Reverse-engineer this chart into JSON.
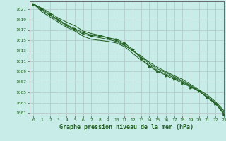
{
  "title": "",
  "xlabel": "Graphe pression niveau de la mer (hPa)",
  "ylabel": "",
  "bg_color": "#c8ece8",
  "grid_color": "#b0c8c4",
  "line_color": "#1e5e1e",
  "xlim": [
    -0.5,
    23
  ],
  "ylim": [
    1000.5,
    1022.5
  ],
  "yticks": [
    1001,
    1003,
    1005,
    1007,
    1009,
    1011,
    1013,
    1015,
    1017,
    1019,
    1021
  ],
  "xticks": [
    0,
    1,
    2,
    3,
    4,
    5,
    6,
    7,
    8,
    9,
    10,
    11,
    12,
    13,
    14,
    15,
    16,
    17,
    18,
    19,
    20,
    21,
    22,
    23
  ],
  "line1": [
    1022.0,
    1021.2,
    1020.3,
    1019.3,
    1018.5,
    1017.8,
    1016.8,
    1016.3,
    1016.0,
    1015.5,
    1015.0,
    1014.2,
    1013.0,
    1012.0,
    1010.8,
    1009.8,
    1009.0,
    1008.2,
    1007.5,
    1006.5,
    1005.5,
    1004.5,
    1003.2,
    1001.5
  ],
  "line2": [
    1022.0,
    1020.8,
    1019.8,
    1018.8,
    1017.8,
    1017.0,
    1016.2,
    1015.8,
    1015.5,
    1015.2,
    1014.8,
    1014.0,
    1013.0,
    1011.8,
    1010.5,
    1009.5,
    1008.8,
    1008.0,
    1007.2,
    1006.3,
    1005.3,
    1004.2,
    1003.0,
    1001.2
  ],
  "line3": [
    1022.0,
    1020.5,
    1019.5,
    1018.5,
    1017.5,
    1016.8,
    1015.8,
    1015.2,
    1015.0,
    1014.8,
    1014.5,
    1013.8,
    1012.5,
    1011.2,
    1010.2,
    1009.2,
    1008.5,
    1007.8,
    1007.0,
    1006.2,
    1005.2,
    1004.0,
    1002.8,
    1001.0
  ],
  "line_marker": [
    1022.0,
    1021.0,
    1020.0,
    1019.0,
    1018.0,
    1017.2,
    1016.5,
    1016.0,
    1015.8,
    1015.5,
    1015.2,
    1014.5,
    1013.2,
    1011.5,
    1010.0,
    1009.0,
    1008.3,
    1007.5,
    1006.8,
    1006.0,
    1005.2,
    1004.0,
    1002.8,
    1000.8
  ]
}
